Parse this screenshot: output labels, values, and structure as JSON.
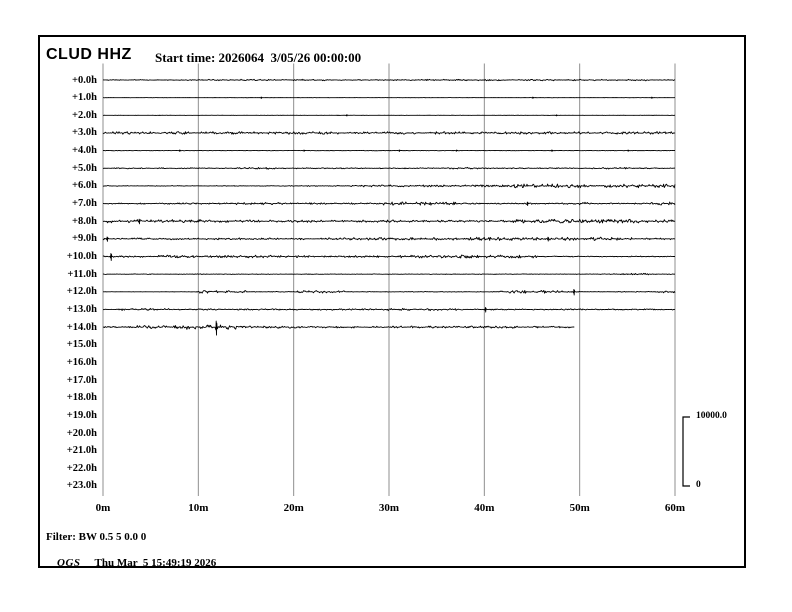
{
  "header": {
    "station": "CLUD HHZ",
    "start_time": "Start time: 2026064  3/05/26 00:00:00"
  },
  "chart_data": {
    "type": "line",
    "subtype": "helicorder-seismogram",
    "title": "CLUD HHZ",
    "station": "CLUD",
    "channel": "HHZ",
    "start_day_of_year": "2026064",
    "start_date": "3/05/26",
    "start_clock": "00:00:00",
    "grid_color": "#8f8f8f",
    "trace_color": "#000000",
    "x_axis": {
      "unit": "minutes",
      "min": 0,
      "max": 60,
      "tick_step": 10,
      "tick_labels": [
        "0m",
        "10m",
        "20m",
        "30m",
        "40m",
        "50m",
        "60m"
      ]
    },
    "amplitude_scale": {
      "max_label": "10000.0",
      "min_label": "0",
      "max_value": 10000.0,
      "min_value": 0
    },
    "rows": [
      {
        "label": "+0.0h",
        "end_min": 60,
        "segments": [
          [
            0,
            10,
            0.45
          ],
          [
            10,
            24,
            0.8
          ],
          [
            24,
            33,
            0.5
          ],
          [
            33,
            57,
            0.75
          ],
          [
            57,
            60,
            0.5
          ]
        ],
        "spikes": []
      },
      {
        "label": "+1.0h",
        "end_min": 60,
        "segments": [
          [
            0,
            60,
            0.12
          ]
        ],
        "spikes": [
          [
            16.5,
            0.8
          ],
          [
            45,
            0.7
          ],
          [
            57.5,
            0.7
          ]
        ]
      },
      {
        "label": "+2.0h",
        "end_min": 60,
        "segments": [
          [
            0,
            60,
            0.12
          ]
        ],
        "spikes": [
          [
            25.5,
            0.7
          ],
          [
            47.5,
            0.6
          ]
        ]
      },
      {
        "label": "+3.0h",
        "end_min": 60,
        "segments": [
          [
            0,
            60,
            1.25
          ]
        ],
        "spikes": []
      },
      {
        "label": "+4.0h",
        "end_min": 60,
        "segments": [
          [
            0,
            60,
            0.22
          ]
        ],
        "spikes": [
          [
            8,
            0.8
          ],
          [
            21,
            0.7
          ],
          [
            31,
            0.8
          ],
          [
            37,
            0.7
          ],
          [
            47,
            0.8
          ],
          [
            55,
            0.7
          ]
        ]
      },
      {
        "label": "+5.0h",
        "end_min": 60,
        "segments": [
          [
            0,
            14,
            0.5
          ],
          [
            14,
            18,
            0.9
          ],
          [
            18,
            36,
            0.5
          ],
          [
            36,
            40,
            0.9
          ],
          [
            40,
            52,
            0.5
          ],
          [
            52,
            56,
            0.9
          ],
          [
            56,
            60,
            0.5
          ]
        ],
        "spikes": []
      },
      {
        "label": "+6.0h",
        "end_min": 60,
        "segments": [
          [
            0,
            20,
            0.35
          ],
          [
            20,
            27,
            0.6
          ],
          [
            27,
            43,
            1.0
          ],
          [
            43,
            60,
            1.9
          ]
        ],
        "spikes": []
      },
      {
        "label": "+7.0h",
        "end_min": 60,
        "segments": [
          [
            0,
            13,
            0.7
          ],
          [
            13,
            19,
            1.2
          ],
          [
            19,
            29,
            0.8
          ],
          [
            29,
            37,
            1.6
          ],
          [
            37,
            49,
            0.7
          ],
          [
            49,
            51,
            1.4
          ],
          [
            51,
            57.5,
            0.6
          ],
          [
            57.5,
            60,
            1.6
          ]
        ],
        "spikes": [
          [
            44.4,
            2.0
          ]
        ]
      },
      {
        "label": "+8.0h",
        "end_min": 60,
        "segments": [
          [
            0,
            11,
            1.6
          ],
          [
            11,
            31,
            1.2
          ],
          [
            31,
            43,
            1.0
          ],
          [
            43,
            60,
            1.9
          ]
        ],
        "spikes": [
          [
            3.7,
            2.6
          ]
        ]
      },
      {
        "label": "+9.0h",
        "end_min": 60,
        "segments": [
          [
            0,
            24,
            0.9
          ],
          [
            24,
            39,
            1.4
          ],
          [
            39,
            55.5,
            1.6
          ],
          [
            55.5,
            60,
            0.8
          ]
        ],
        "spikes": [
          [
            0.4,
            2.5
          ],
          [
            46.6,
            2.2
          ]
        ]
      },
      {
        "label": "+10.0h",
        "end_min": 60,
        "segments": [
          [
            0,
            5,
            1.0
          ],
          [
            5,
            18,
            1.3
          ],
          [
            18,
            31,
            1.0
          ],
          [
            31,
            45.5,
            1.5
          ],
          [
            45.5,
            60,
            0.5
          ]
        ],
        "spikes": [
          [
            0.75,
            4.0
          ]
        ]
      },
      {
        "label": "+11.0h",
        "end_min": 60,
        "segments": [
          [
            0,
            53.5,
            0.3
          ],
          [
            53.5,
            57.5,
            0.8
          ],
          [
            57.5,
            60,
            0.3
          ]
        ],
        "spikes": []
      },
      {
        "label": "+12.0h",
        "end_min": 60,
        "segments": [
          [
            0,
            9.8,
            0.12
          ],
          [
            9.8,
            15,
            1.4
          ],
          [
            15,
            20,
            0.35
          ],
          [
            20,
            25.5,
            1.2
          ],
          [
            25.5,
            41.5,
            0.3
          ],
          [
            41.5,
            48.5,
            1.4
          ],
          [
            48.5,
            58,
            0.4
          ],
          [
            58,
            60,
            1.0
          ]
        ],
        "spikes": [
          [
            49.3,
            3.2
          ]
        ]
      },
      {
        "label": "+13.0h",
        "end_min": 60,
        "segments": [
          [
            0,
            2,
            0.5
          ],
          [
            2,
            7,
            1.1
          ],
          [
            7,
            29,
            0.7
          ],
          [
            29,
            37.5,
            1.3
          ],
          [
            37.5,
            60,
            0.6
          ]
        ],
        "spikes": [
          [
            40.0,
            2.6
          ]
        ]
      },
      {
        "label": "+14.0h",
        "end_min": 49.5,
        "segments": [
          [
            0,
            3.5,
            0.6
          ],
          [
            3.5,
            8.5,
            1.6
          ],
          [
            8.5,
            14,
            2.4
          ],
          [
            14,
            21,
            1.2
          ],
          [
            21,
            31,
            0.9
          ],
          [
            31,
            44,
            1.1
          ],
          [
            44,
            49.5,
            0.9
          ]
        ],
        "spikes": [
          [
            11.8,
            8.0
          ]
        ]
      },
      {
        "label": "+15.0h",
        "end_min": null,
        "segments": [],
        "spikes": []
      },
      {
        "label": "+16.0h",
        "end_min": null,
        "segments": [],
        "spikes": []
      },
      {
        "label": "+17.0h",
        "end_min": null,
        "segments": [],
        "spikes": []
      },
      {
        "label": "+18.0h",
        "end_min": null,
        "segments": [],
        "spikes": []
      },
      {
        "label": "+19.0h",
        "end_min": null,
        "segments": [],
        "spikes": []
      },
      {
        "label": "+20.0h",
        "end_min": null,
        "segments": [],
        "spikes": []
      },
      {
        "label": "+21.0h",
        "end_min": null,
        "segments": [],
        "spikes": []
      },
      {
        "label": "+22.0h",
        "end_min": null,
        "segments": [],
        "spikes": []
      },
      {
        "label": "+23.0h",
        "end_min": null,
        "segments": [],
        "spikes": []
      }
    ]
  },
  "footer": {
    "filter": "Filter: BW 0.5 5 0.0 0",
    "brand": "OGS",
    "generated": "Thu Mar  5 15:49:19 2026"
  }
}
